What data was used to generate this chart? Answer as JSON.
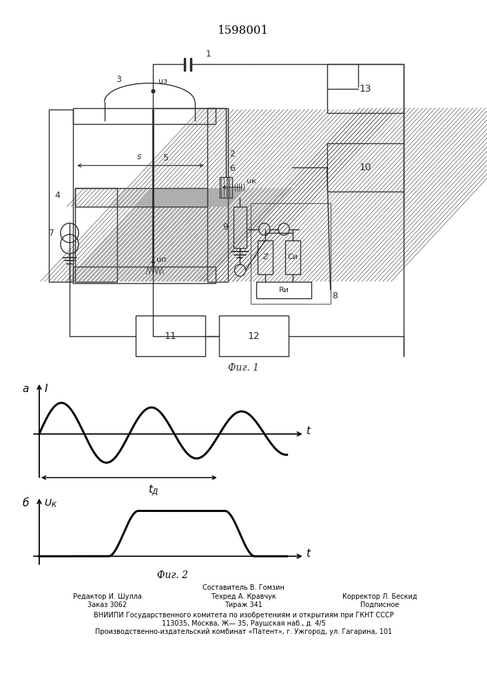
{
  "title": "1598001",
  "title_fontsize": 12,
  "background_color": "#ffffff",
  "fig1_caption": "Фиг. 1",
  "fig2_caption": "Фиг. 2",
  "footer_lines": [
    "Составитель В. Гомзин",
    "ВНИИПИ Государственного комитета по изобретениям и открытиям при ГКНТ СССР",
    "113035, Москва, Ж— 35, Раушская наб., д. 4/5",
    "Производственно-издательский комбинат «Патент», г. Ужгород, ул. Гагарина, 101"
  ],
  "line_color": "#2a2a2a",
  "hatch_color": "#555555"
}
